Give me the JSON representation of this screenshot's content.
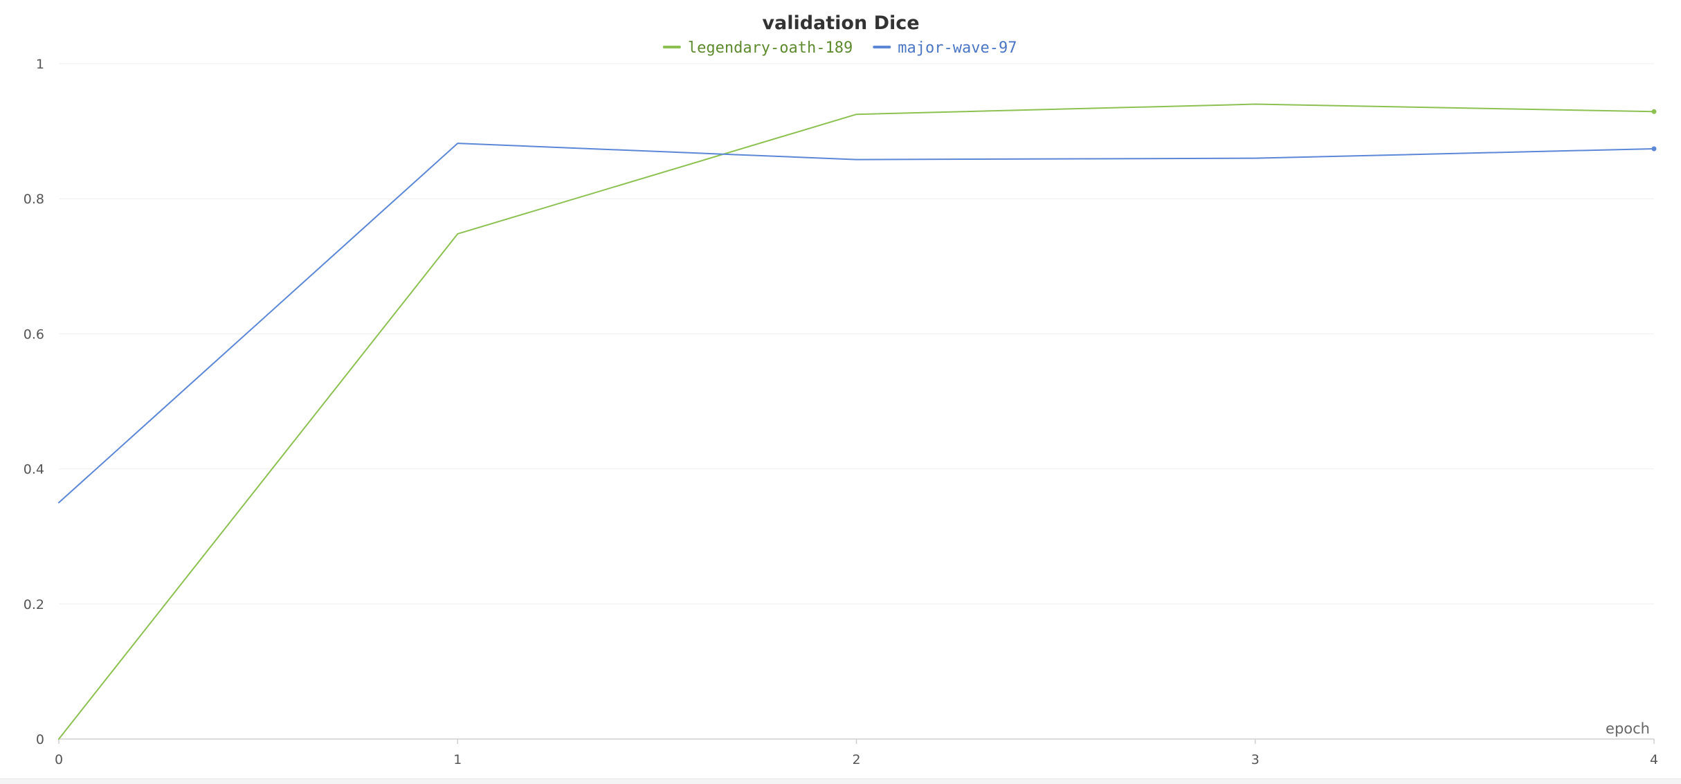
{
  "chart_data": {
    "type": "line",
    "title": "validation Dice",
    "xlabel": "epoch",
    "ylabel": "",
    "x": [
      0,
      1,
      2,
      3,
      4
    ],
    "x_ticks": [
      "0",
      "1",
      "2",
      "3",
      "4"
    ],
    "y_ticks": [
      "0",
      "0.2",
      "0.4",
      "0.6",
      "0.8",
      "1"
    ],
    "xlim": [
      0,
      4
    ],
    "ylim": [
      0,
      1
    ],
    "grid": true,
    "legend_position": "top-center",
    "series": [
      {
        "name": "legendary-oath-189",
        "color": "#8cc152",
        "text_color": "#5e8a2e",
        "values": [
          0.0,
          0.748,
          0.925,
          0.94,
          0.929
        ]
      },
      {
        "name": "major-wave-97",
        "color": "#5b87d6",
        "text_color": "#4a76c4",
        "values": [
          0.35,
          0.882,
          0.858,
          0.86,
          0.874
        ]
      }
    ]
  }
}
